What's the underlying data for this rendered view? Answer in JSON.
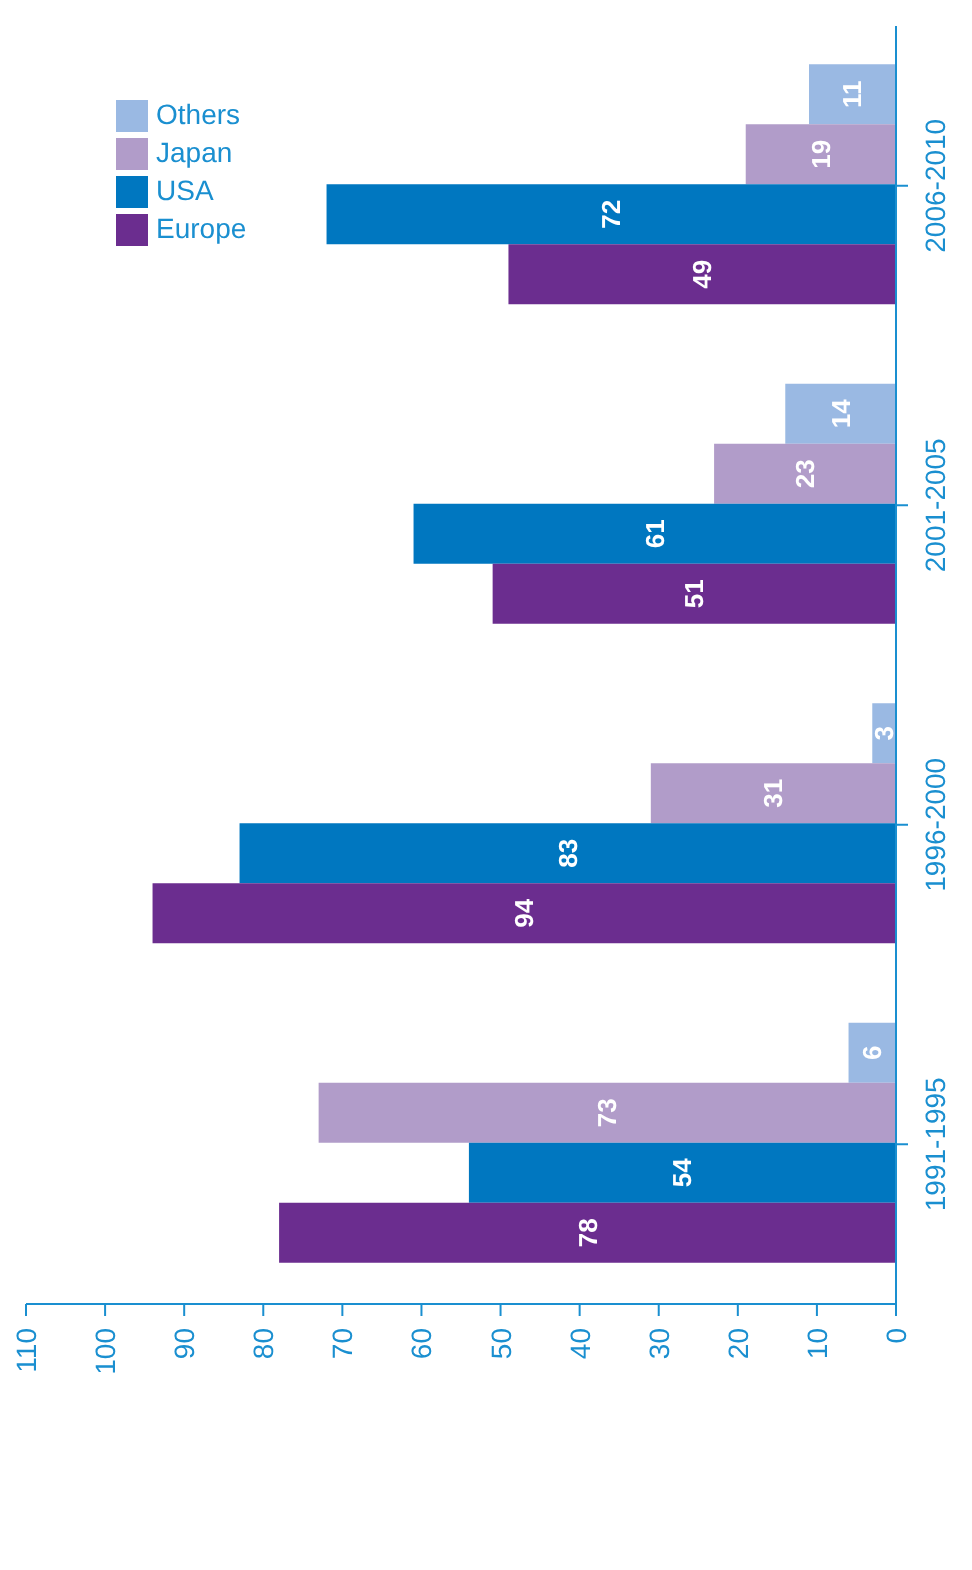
{
  "chart_data": {
    "type": "bar",
    "orientation": "horizontal",
    "categories": [
      "2006-2010",
      "2001-2005",
      "1996-2000",
      "1991-1995"
    ],
    "series": [
      {
        "name": "Europe",
        "color": "#6b2d8f",
        "values": [
          49,
          51,
          94,
          78
        ]
      },
      {
        "name": "USA",
        "color": "#0077c0",
        "values": [
          72,
          61,
          83,
          54
        ]
      },
      {
        "name": "Japan",
        "color": "#b19cc9",
        "values": [
          19,
          23,
          31,
          73
        ]
      },
      {
        "name": "Others",
        "color": "#9ab9e3",
        "values": [
          11,
          14,
          3,
          6
        ]
      }
    ],
    "xlim": [
      110,
      0
    ],
    "xticks": [
      110,
      100,
      90,
      80,
      70,
      60,
      50,
      40,
      30,
      20,
      10,
      0
    ],
    "legend": "top left",
    "data_labels": true
  }
}
